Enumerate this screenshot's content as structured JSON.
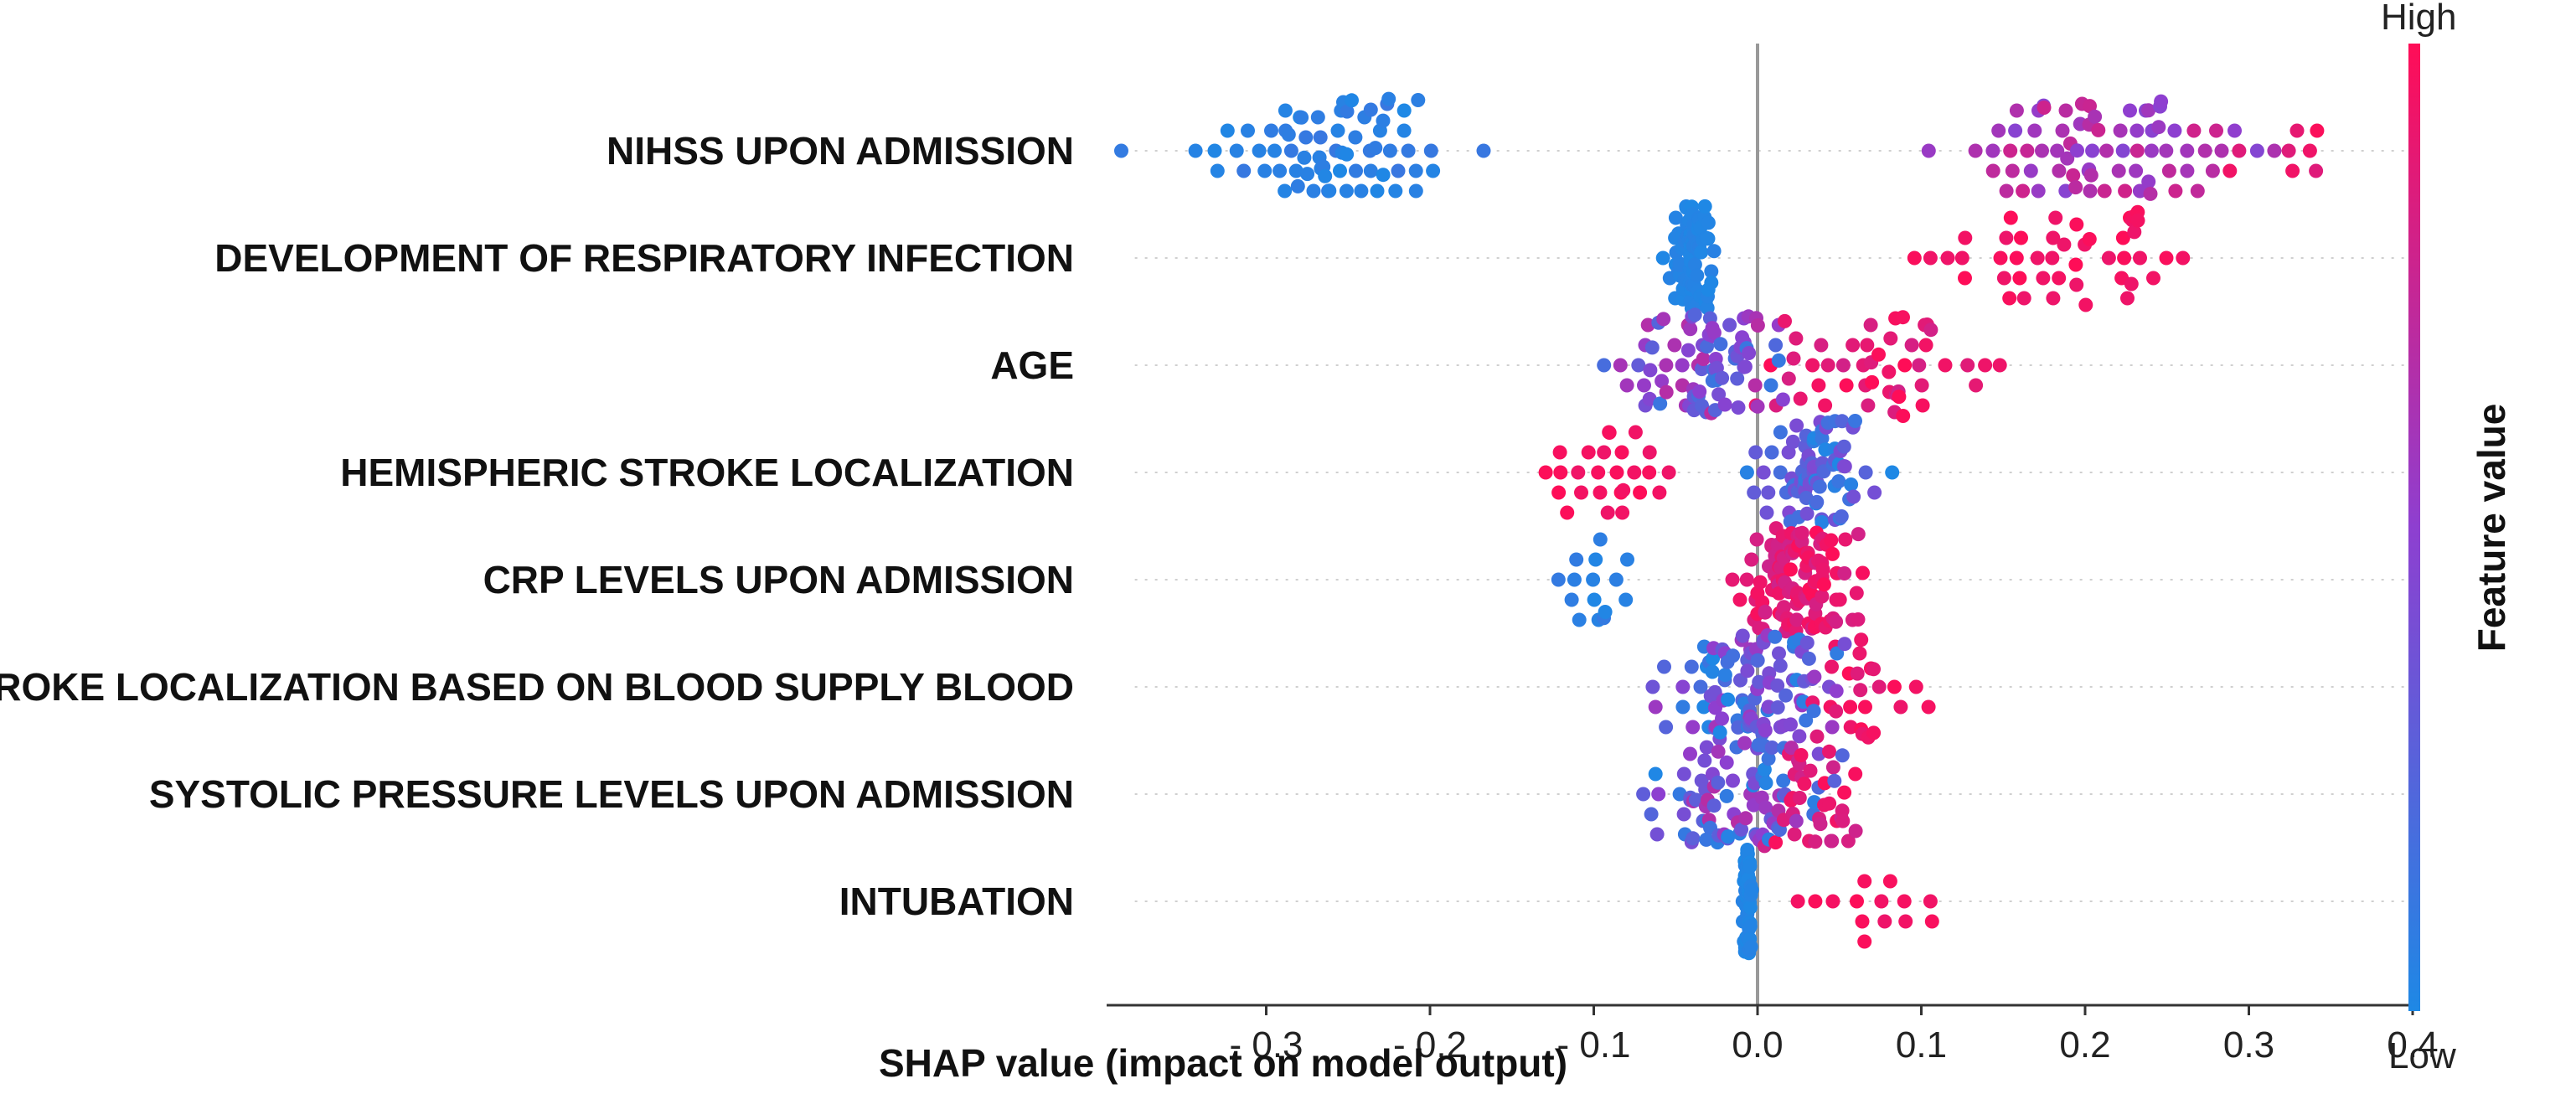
{
  "chart_data": {
    "type": "scatter",
    "subtype": "shap-beeswarm",
    "xlabel": "SHAP value (impact on model output)",
    "xlim": [
      -0.4,
      0.4
    ],
    "x_ticks": [
      -0.3,
      -0.2,
      -0.1,
      0.0,
      0.1,
      0.2,
      0.3,
      0.4
    ],
    "x_tick_labels": [
      "- 0.3",
      "- 0.2",
      "- 0.1",
      "0.0",
      "0.1",
      "0.2",
      "0.3",
      "0.4"
    ],
    "zero_line": 0.0,
    "colorbar": {
      "title": "Feature value",
      "high_label": "High",
      "low_label": "Low",
      "high_color": "#ff0d57",
      "low_color": "#1e88e5"
    },
    "features": [
      {
        "name": "NIHSS UPON ADMISSION",
        "groups": [
          {
            "center": -0.27,
            "spread": 0.045,
            "count": 70,
            "value_min": 0.0,
            "value_max": 0.12
          },
          {
            "center": 0.21,
            "spread": 0.045,
            "count": 75,
            "value_min": 0.45,
            "value_max": 0.8
          },
          {
            "center": 0.33,
            "spread": 0.03,
            "count": 8,
            "value_min": 0.85,
            "value_max": 1.0
          }
        ]
      },
      {
        "name": "DEVELOPMENT OF RESPIRATORY INFECTION",
        "groups": [
          {
            "center": -0.04,
            "spread": 0.006,
            "count": 85,
            "value_min": 0.0,
            "value_max": 0.05
          },
          {
            "center": 0.18,
            "spread": 0.04,
            "count": 45,
            "value_min": 0.92,
            "value_max": 1.0
          }
        ]
      },
      {
        "name": "AGE",
        "groups": [
          {
            "center": -0.03,
            "spread": 0.025,
            "count": 80,
            "value_min": 0.1,
            "value_max": 0.7
          },
          {
            "center": 0.07,
            "spread": 0.035,
            "count": 50,
            "value_min": 0.8,
            "value_max": 1.0
          }
        ]
      },
      {
        "name": "HEMISPHERIC STROKE LOCALIZATION",
        "groups": [
          {
            "center": -0.095,
            "spread": 0.02,
            "count": 26,
            "value_min": 0.92,
            "value_max": 1.0
          },
          {
            "center": 0.03,
            "spread": 0.018,
            "count": 80,
            "value_min": 0.0,
            "value_max": 0.45
          }
        ]
      },
      {
        "name": "CRP LEVELS UPON ADMISSION",
        "groups": [
          {
            "center": -0.1,
            "spread": 0.013,
            "count": 15,
            "value_min": 0.0,
            "value_max": 0.1
          },
          {
            "center": 0.025,
            "spread": 0.018,
            "count": 105,
            "value_min": 0.78,
            "value_max": 1.0
          }
        ]
      },
      {
        "name": "STROKE LOCALIZATION BASED ON BLOOD SUPPLY  BLOOD",
        "groups": [
          {
            "center": 0.0,
            "spread": 0.025,
            "count": 100,
            "value_min": 0.0,
            "value_max": 0.6
          },
          {
            "center": 0.065,
            "spread": 0.02,
            "count": 25,
            "value_min": 0.85,
            "value_max": 1.0
          }
        ]
      },
      {
        "name": "SYSTOLIC PRESSURE LEVELS UPON ADMISSION",
        "groups": [
          {
            "center": -0.01,
            "spread": 0.027,
            "count": 85,
            "value_min": 0.0,
            "value_max": 0.7
          },
          {
            "center": 0.035,
            "spread": 0.015,
            "count": 35,
            "value_min": 0.75,
            "value_max": 1.0
          }
        ]
      },
      {
        "name": "INTUBATION",
        "groups": [
          {
            "center": -0.006,
            "spread": 0.0012,
            "count": 60,
            "value_min": 0.0,
            "value_max": 0.04
          },
          {
            "center": 0.07,
            "spread": 0.018,
            "count": 14,
            "value_min": 0.92,
            "value_max": 1.0
          }
        ]
      }
    ]
  }
}
